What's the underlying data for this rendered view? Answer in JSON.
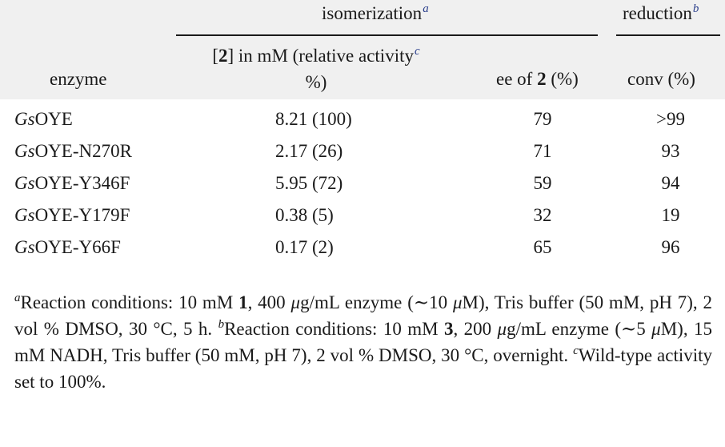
{
  "table": {
    "group_headers": {
      "isomerization": "isomerization",
      "isomerization_mark": "a",
      "reduction": "reduction",
      "reduction_mark": "b"
    },
    "columns": {
      "enzyme": "enzyme",
      "conc_line1_pre": "[",
      "conc_line1_bold": "2",
      "conc_line1_post": "] in mM (relative activity",
      "conc_mark": "c",
      "conc_line2": "%)",
      "ee_pre": "ee of ",
      "ee_bold": "2",
      "ee_post": " (%)",
      "conv": "conv (%)"
    },
    "rows": [
      {
        "enzyme_prefix": "Gs",
        "enzyme_rest": "OYE",
        "conc": "8.21 (100)",
        "ee": "79",
        "conv": ">99"
      },
      {
        "enzyme_prefix": "Gs",
        "enzyme_rest": "OYE-N270R",
        "conc": "2.17 (26)",
        "ee": "71",
        "conv": "93"
      },
      {
        "enzyme_prefix": "Gs",
        "enzyme_rest": "OYE-Y346F",
        "conc": "5.95 (72)",
        "ee": "59",
        "conv": "94"
      },
      {
        "enzyme_prefix": "Gs",
        "enzyme_rest": "OYE-Y179F",
        "conc": "0.38 (5)",
        "ee": "32",
        "conv": "19"
      },
      {
        "enzyme_prefix": "Gs",
        "enzyme_rest": "OYE-Y66F",
        "conc": "0.17 (2)",
        "ee": "65",
        "conv": "96"
      }
    ]
  },
  "footnotes": {
    "a_mark": "a",
    "a_part1": "Reaction conditions: 10 mM ",
    "a_bold1": "1",
    "a_part2": ", 400 ",
    "a_mu1": "μ",
    "a_part3": "g/mL enzyme (∼10 ",
    "a_mu2": "μ",
    "a_part4": "M), Tris buffer (50 mM, pH 7), 2 vol % DMSO, 30 °C, 5 h. ",
    "b_mark": "b",
    "b_part1": "Reaction conditions: 10 mM ",
    "b_bold1": "3",
    "b_part2": ", 200 ",
    "b_mu1": "μ",
    "b_part3": "g/mL enzyme (∼5 ",
    "b_mu2": "μ",
    "b_part4": "M), 15 mM NADH, Tris buffer (50 mM, pH 7), 2 vol % DMSO, 30 °C, overnight. ",
    "c_mark": "c",
    "c_part1": "Wild-type activity set to 100%."
  }
}
